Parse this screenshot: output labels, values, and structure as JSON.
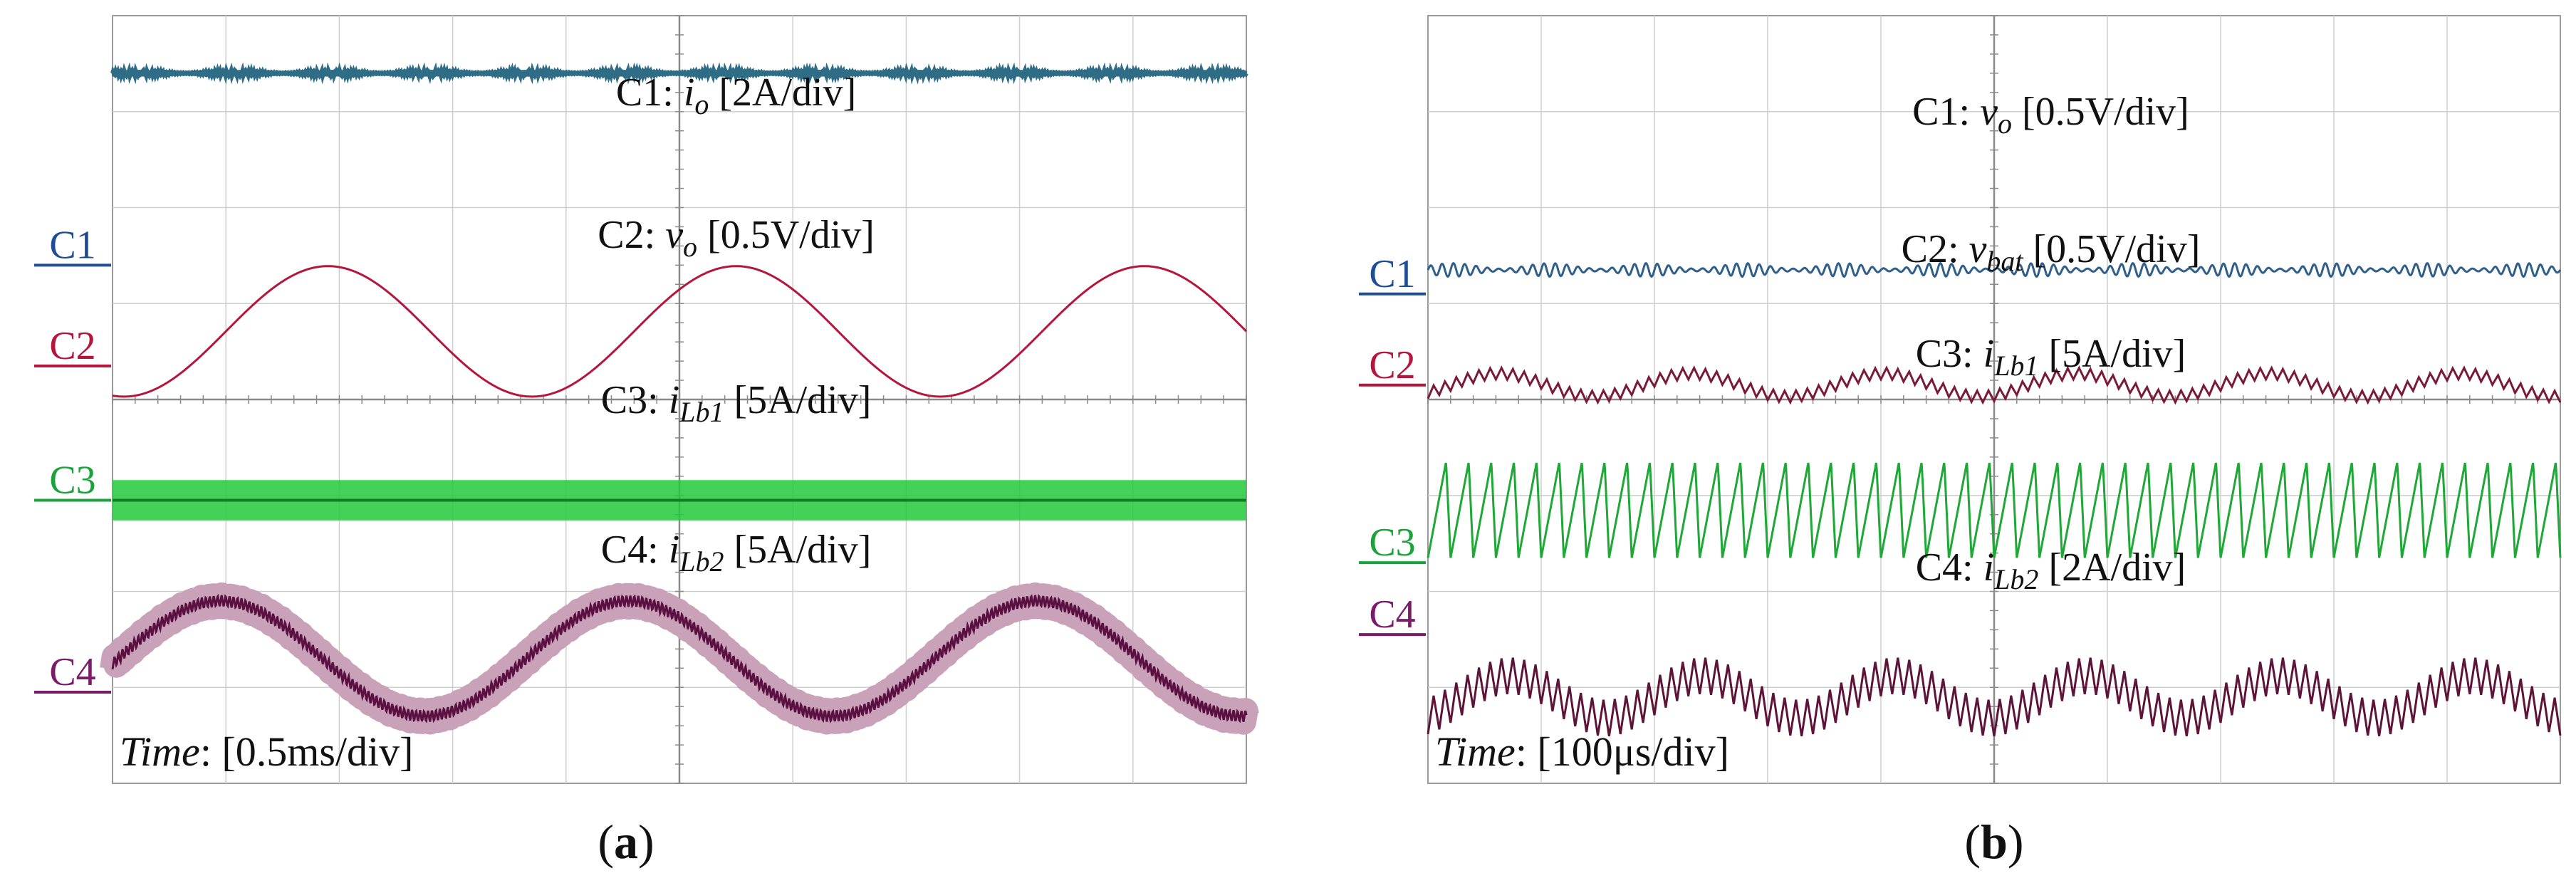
{
  "chart_data": [
    {
      "type": "line",
      "panel_label": "a",
      "time_scale": "[0.5ms/div]",
      "time_label": "Time",
      "divisions": {
        "x": 10,
        "y": 8
      },
      "grid": true,
      "channels": [
        {
          "id": "C1",
          "signal": "i",
          "sub": "o",
          "scale": "[2A/div]",
          "color": "#1f4e96",
          "wave_color": "#2f6d87",
          "ground_div": 5.4,
          "waveform": {
            "kind": "flat",
            "offset_div": 2.0,
            "ripple_div": 0.03
          }
        },
        {
          "id": "C2",
          "signal": "v",
          "sub": "o",
          "scale": "[0.5V/div]",
          "color": "#b5163c",
          "wave_color": "#b5163c",
          "ground_div": 4.35,
          "waveform": {
            "kind": "sine",
            "offset_div": 0.36,
            "amplitude_div": 0.68,
            "period_div": 3.6,
            "phase_div": 1.0
          }
        },
        {
          "id": "C3",
          "signal": "i",
          "sub": "Lb1",
          "scale": "[5A/div]",
          "color": "#1aa33a",
          "wave_color": "#22c93a",
          "ground_div": 2.95,
          "waveform": {
            "kind": "band",
            "offset_div": 0.0,
            "band_div": 0.42
          }
        },
        {
          "id": "C4",
          "signal": "i",
          "sub": "Lb2",
          "scale": "[5A/div]",
          "color": "#7b1c6b",
          "wave_color": "#5a1040",
          "ground_div": 0.95,
          "waveform": {
            "kind": "sine",
            "offset_div": 0.35,
            "amplitude_div": 0.6,
            "period_div": 3.6,
            "phase_div": 0.05,
            "ripple_div": 0.12,
            "ripple_period_div": 0.035
          }
        }
      ]
    },
    {
      "type": "line",
      "panel_label": "b",
      "time_scale": "[100μs/div]",
      "time_label": "Time",
      "divisions": {
        "x": 10,
        "y": 8
      },
      "grid": true,
      "channels": [
        {
          "id": "C1",
          "signal": "v",
          "sub": "o",
          "scale": "[0.5V/div]",
          "color": "#1f4e96",
          "wave_color": "#2f5f8a",
          "ground_div": 5.1,
          "waveform": {
            "kind": "flat",
            "offset_div": 0.25,
            "ripple_div": 0.07,
            "ripple_period_div": 0.1
          }
        },
        {
          "id": "C2",
          "signal": "v",
          "sub": "bat",
          "scale": "[0.5V/div]",
          "color": "#b5163c",
          "wave_color": "#7a1a3a",
          "ground_div": 4.15,
          "waveform": {
            "kind": "sine",
            "offset_div": 0.0,
            "amplitude_div": 0.12,
            "period_div": 1.7,
            "phase_div": 0.2,
            "ripple_div": 0.12,
            "ripple_period_div": 0.1
          }
        },
        {
          "id": "C3",
          "signal": "i",
          "sub": "Lb1",
          "scale": "[5A/div]",
          "color": "#1aa33a",
          "wave_color": "#1ea836",
          "ground_div": 2.3,
          "waveform": {
            "kind": "triangle",
            "offset_div": 0.55,
            "amplitude_div": 0.5,
            "period_div": 0.2
          }
        },
        {
          "id": "C4",
          "signal": "i",
          "sub": "Lb2",
          "scale": "[2A/div]",
          "color": "#7b1c6b",
          "wave_color": "#5e1438",
          "ground_div": 1.55,
          "waveform": {
            "kind": "sine",
            "offset_div": -0.65,
            "amplitude_div": 0.22,
            "period_div": 1.7,
            "phase_div": 0.3,
            "ripple_div": 0.38,
            "ripple_period_div": 0.1
          }
        }
      ]
    }
  ]
}
